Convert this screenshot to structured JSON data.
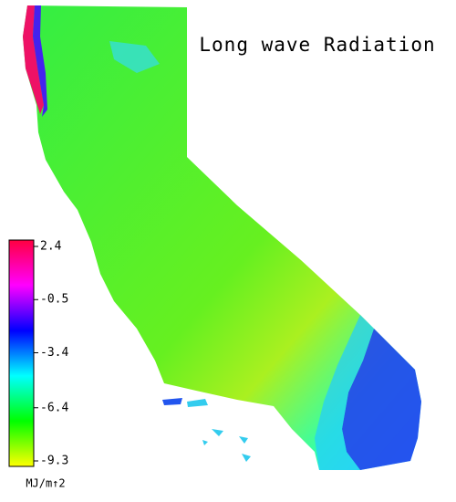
{
  "title": "Long wave Radiation",
  "colorbar": {
    "unit": "MJ/m↑2",
    "lim": [
      -9.3,
      2.4
    ],
    "ticks": [
      2.4,
      -0.5,
      -3.4,
      -6.4,
      -9.3
    ],
    "colors": [
      "#ffff00",
      "#00ff00",
      "#00ffff",
      "#0000ff",
      "#ff00ff",
      "#ff0040"
    ]
  }
}
